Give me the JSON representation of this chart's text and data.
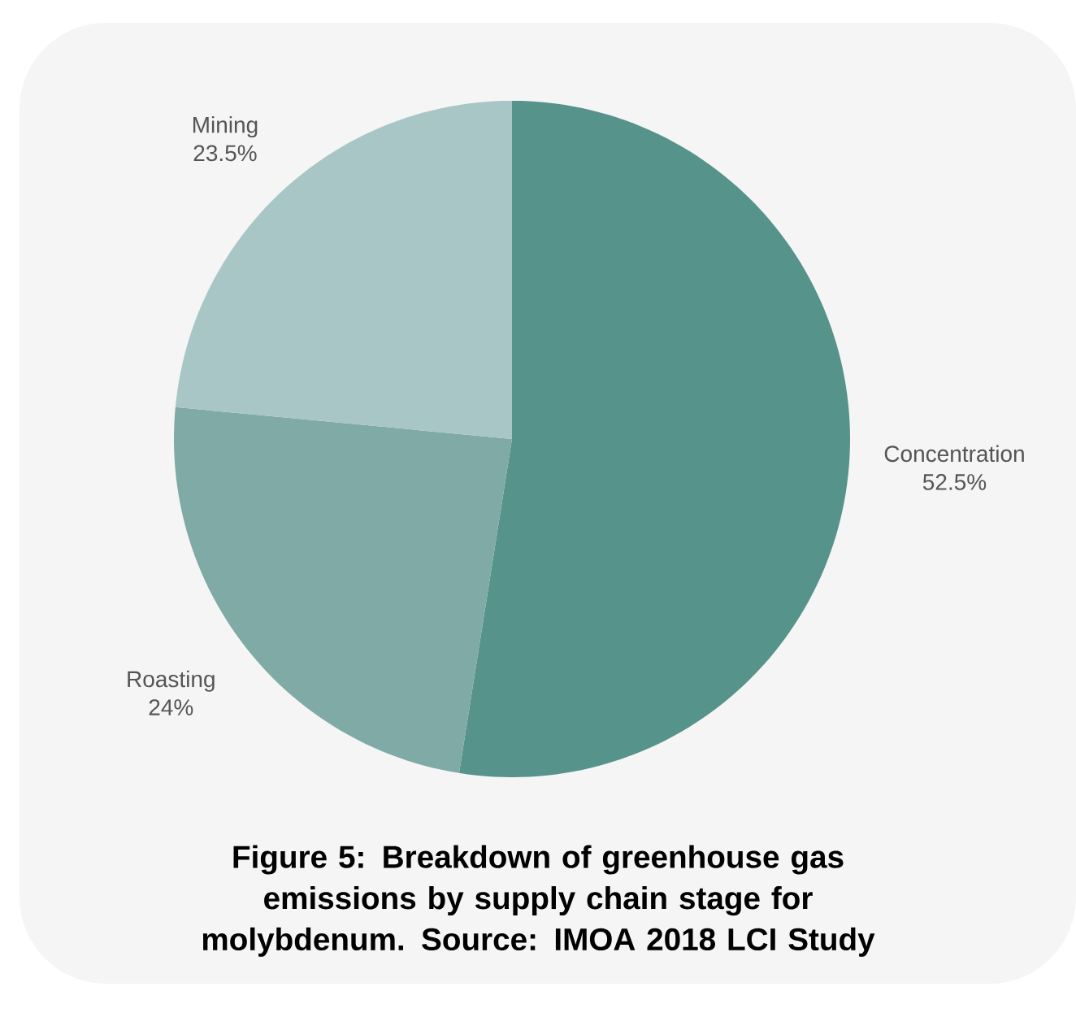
{
  "chart_data": {
    "type": "pie",
    "title": "Figure 5: Breakdown of greenhouse gas emissions by supply chain stage for molybdenum. Source: IMOA 2018 LCI Study",
    "categories": [
      "Concentration",
      "Roasting",
      "Mining"
    ],
    "values": [
      52.5,
      24,
      23.5
    ],
    "value_labels": [
      "52.5%",
      "24%",
      "23.5%"
    ],
    "colors": [
      "#56938b",
      "#7faaa6",
      "#a7c6c5"
    ]
  }
}
